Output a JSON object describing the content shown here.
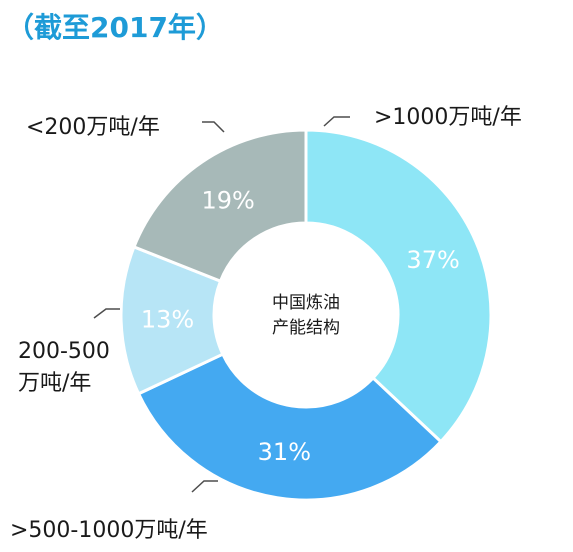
{
  "title": "（截至2017年）",
  "colors": {
    "title": "#1e9bd7",
    "leader": "#4d4d4d"
  },
  "chart_data": {
    "type": "pie",
    "center_label": [
      "中国炼油",
      "产能结构"
    ],
    "slices": [
      {
        "label": ">1000万吨/年",
        "label_lines": [
          ">1000万吨/年"
        ],
        "value": 37,
        "display": "37%",
        "color": "#8ee6f6"
      },
      {
        "label": ">500-1000万吨/年",
        "label_lines": [
          ">500-1000万吨/年"
        ],
        "value": 31,
        "display": "31%",
        "color": "#44a9f1"
      },
      {
        "label": "200-500万吨/年",
        "label_lines": [
          "200-500",
          "万吨/年"
        ],
        "value": 13,
        "display": "13%",
        "color": "#b7e5f6"
      },
      {
        "label": "<200万吨/年",
        "label_lines": [
          "<200万吨/年"
        ],
        "value": 19,
        "display": "19%",
        "color": "#a7b9b8"
      }
    ]
  }
}
